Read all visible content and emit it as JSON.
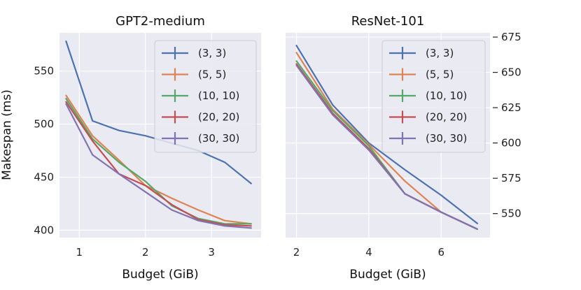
{
  "chart_data": [
    {
      "type": "line",
      "title": "GPT2-medium",
      "xlabel": "Budget (GiB)",
      "ylabel": "Makespan (ms)",
      "xlim": [
        0.7,
        3.75
      ],
      "ylim": [
        393,
        586
      ],
      "xticks": [
        1,
        2,
        3
      ],
      "yticks": [
        400,
        450,
        500,
        550
      ],
      "legend": "top-right",
      "series": [
        {
          "name": "(3, 3)",
          "color": "#4c72b0",
          "x": [
            0.8,
            1.2,
            1.6,
            2.0,
            2.4,
            2.8,
            3.2,
            3.6
          ],
          "y": [
            578,
            503,
            494,
            489,
            482,
            475,
            464,
            444
          ]
        },
        {
          "name": "(5, 5)",
          "color": "#dd8452",
          "x": [
            0.8,
            1.2,
            1.6,
            2.0,
            2.4,
            2.8,
            3.2,
            3.6
          ],
          "y": [
            527,
            489,
            466,
            442,
            430,
            419,
            409,
            406
          ]
        },
        {
          "name": "(10, 10)",
          "color": "#55a868",
          "x": [
            0.8,
            1.2,
            1.6,
            2.0,
            2.4,
            2.8,
            3.2,
            3.6
          ],
          "y": [
            524,
            486,
            464,
            446,
            423,
            411,
            406,
            406
          ]
        },
        {
          "name": "(20, 20)",
          "color": "#c44e52",
          "x": [
            0.8,
            1.2,
            1.6,
            2.0,
            2.4,
            2.8,
            3.2,
            3.6
          ],
          "y": [
            521,
            484,
            453,
            442,
            424,
            410,
            405,
            404
          ]
        },
        {
          "name": "(30, 30)",
          "color": "#8172b2",
          "x": [
            0.8,
            1.2,
            1.6,
            2.0,
            2.4,
            2.8,
            3.2,
            3.6
          ],
          "y": [
            519,
            471,
            453,
            436,
            419,
            409,
            404,
            402
          ]
        }
      ]
    },
    {
      "type": "line",
      "title": "ResNet-101",
      "xlabel": "Budget (GiB)",
      "ylabel": "",
      "xlim": [
        1.7,
        7.35
      ],
      "ylim": [
        533,
        678
      ],
      "xticks": [
        2,
        4,
        6
      ],
      "yticks": [
        550,
        575,
        600,
        625,
        650,
        675
      ],
      "yaxis_side": "right",
      "legend": "top-right",
      "series": [
        {
          "name": "(3, 3)",
          "color": "#4c72b0",
          "x": [
            2,
            3,
            4,
            5,
            6,
            7
          ],
          "y": [
            669,
            627,
            600,
            581,
            563,
            543
          ]
        },
        {
          "name": "(5, 5)",
          "color": "#dd8452",
          "x": [
            2,
            3,
            4,
            5,
            6,
            7
          ],
          "y": [
            664,
            624,
            599,
            573,
            551,
            539
          ]
        },
        {
          "name": "(10, 10)",
          "color": "#55a868",
          "x": [
            2,
            3,
            4,
            5,
            6,
            7
          ],
          "y": [
            658,
            623,
            598,
            564,
            551,
            539
          ]
        },
        {
          "name": "(20, 20)",
          "color": "#c44e52",
          "x": [
            2,
            3,
            4,
            5,
            6,
            7
          ],
          "y": [
            656,
            621,
            596,
            564,
            551,
            539
          ]
        },
        {
          "name": "(30, 30)",
          "color": "#8172b2",
          "x": [
            2,
            3,
            4,
            5,
            6,
            7
          ],
          "y": [
            655,
            620,
            595,
            564,
            551,
            539
          ]
        }
      ]
    }
  ]
}
